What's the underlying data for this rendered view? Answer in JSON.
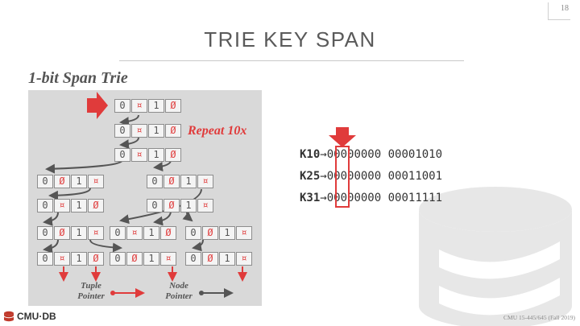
{
  "slide_number": "18",
  "title": "TRIE KEY SPAN",
  "subtitle": "1-bit Span Trie",
  "repeat_label": "Repeat 10x",
  "trie": {
    "root": [
      "0",
      "¤",
      "1",
      "Ø"
    ],
    "level2": [
      "0",
      "¤",
      "1",
      "Ø"
    ],
    "level3": [
      "0",
      "¤",
      "1",
      "Ø"
    ],
    "left_a": [
      "0",
      "Ø",
      "1",
      "¤"
    ],
    "right_a": [
      "0",
      "Ø",
      "1",
      "¤"
    ],
    "left_b": [
      "0",
      "¤",
      "1",
      "Ø"
    ],
    "right_b": [
      "0",
      "Ø",
      "1",
      "¤"
    ],
    "row6_1": [
      "0",
      "Ø",
      "1",
      "¤"
    ],
    "row6_2": [
      "0",
      "¤",
      "1",
      "Ø"
    ],
    "row6_3": [
      "0",
      "Ø",
      "1",
      "¤"
    ],
    "row7_1": [
      "0",
      "¤",
      "1",
      "Ø"
    ],
    "row7_2": [
      "0",
      "Ø",
      "1",
      "¤"
    ],
    "row7_3": [
      "0",
      "Ø",
      "1",
      "¤"
    ]
  },
  "legend": {
    "tuple_pointer": "Tuple Pointer",
    "node_pointer": "Node Pointer"
  },
  "keys": [
    {
      "key": "K10",
      "arrow": "→",
      "bits_a": "00000000",
      "bits_b": "00001010"
    },
    {
      "key": "K25",
      "arrow": "→",
      "bits_a": "00000000",
      "bits_b": "00011001"
    },
    {
      "key": "K31",
      "arrow": "→",
      "bits_a": "00000000",
      "bits_b": "00011111"
    }
  ],
  "footer": {
    "logo_text": "CMU·DB",
    "course": "CMU 15-445/645 (Fall 2019)"
  },
  "colors": {
    "accent_red": "#e03b3b",
    "panel_gray": "#d9d9d9",
    "node_pointer_gray": "#555555"
  }
}
